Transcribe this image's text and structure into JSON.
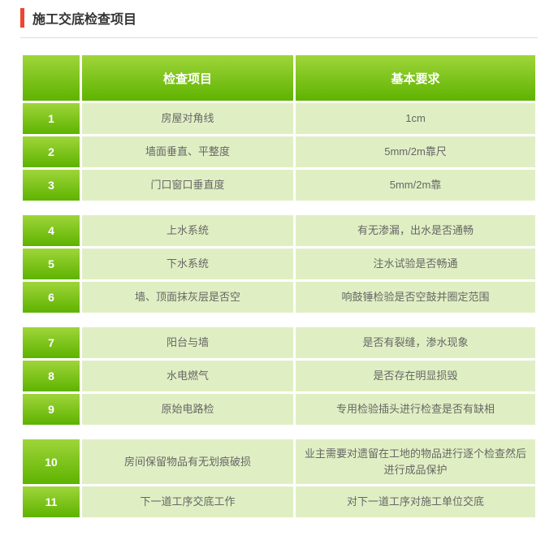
{
  "title": "施工交底检查项目",
  "headers": {
    "item": "检查项目",
    "req": "基本要求"
  },
  "colors": {
    "accent_border": "#ee4433",
    "header_grad_top": "#9fd53a",
    "header_grad_bottom": "#5eb300",
    "header_text": "#ffffff",
    "cell_bg": "#e0efc3",
    "cell_text": "#666666",
    "title_text": "#333333",
    "divider": "#dddddd"
  },
  "rows": {
    "r1": {
      "n": "1",
      "item": "房屋对角线",
      "req": "1cm"
    },
    "r2": {
      "n": "2",
      "item": "墙面垂直、平整度",
      "req": "5mm/2m靠尺"
    },
    "r3": {
      "n": "3",
      "item": "门口窗口垂直度",
      "req": "5mm/2m靠"
    },
    "r4": {
      "n": "4",
      "item": "上水系统",
      "req": "有无渗漏，出水是否通畅"
    },
    "r5": {
      "n": "5",
      "item": "下水系统",
      "req": "注水试验是否畅通"
    },
    "r6": {
      "n": "6",
      "item": "墙、顶面抹灰层是否空",
      "req": "响鼓锤检验是否空鼓并圈定范围"
    },
    "r7": {
      "n": "7",
      "item": "阳台与墙",
      "req": "是否有裂缝，渗水现象"
    },
    "r8": {
      "n": "8",
      "item": "水电燃气",
      "req": "是否存在明显损毁"
    },
    "r9": {
      "n": "9",
      "item": "原始电路检",
      "req": "专用检验插头进行检查是否有缺相"
    },
    "r10": {
      "n": "10",
      "item": "房间保留物品有无划痕破损",
      "req": "业主需要对遗留在工地的物品进行逐个检查然后进行成品保护"
    },
    "r11": {
      "n": "11",
      "item": "下一道工序交底工作",
      "req": "对下一道工序对施工单位交底"
    }
  }
}
